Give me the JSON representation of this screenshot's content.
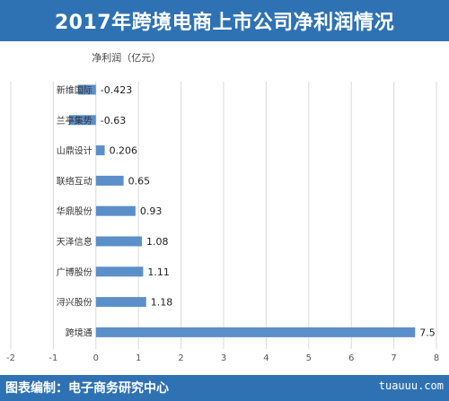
{
  "header": {
    "title": "2017年跨境电商上市公司净利润情况"
  },
  "chart_data": {
    "type": "bar",
    "orientation": "horizontal",
    "subtitle": "净利润（亿元）",
    "categories": [
      "新维国际",
      "兰亭集势",
      "山鼎设计",
      "联络互动",
      "华鼎股份",
      "天泽信息",
      "广博股份",
      "浔兴股份",
      "跨境通"
    ],
    "values": [
      -0.423,
      -0.63,
      0.206,
      0.65,
      0.93,
      1.08,
      1.11,
      1.18,
      7.5
    ],
    "value_labels": [
      "-0.423",
      "-0.63",
      "0.206",
      "0.65",
      "0.93",
      "1.08",
      "1.11",
      "1.18",
      "7.5"
    ],
    "xlim": [
      -2,
      8
    ],
    "xticks": [
      -2,
      -1,
      0,
      1,
      2,
      3,
      4,
      5,
      6,
      7,
      8
    ],
    "xtick_labels": [
      "-2",
      "-1",
      "0",
      "1",
      "2",
      "3",
      "4",
      "5",
      "6",
      "7",
      "8"
    ],
    "grid": true,
    "bar_color": "#5b8fc9"
  },
  "footer": {
    "credit": "图表编制：电子商务研究中心",
    "watermark": "tuauuu.com"
  }
}
